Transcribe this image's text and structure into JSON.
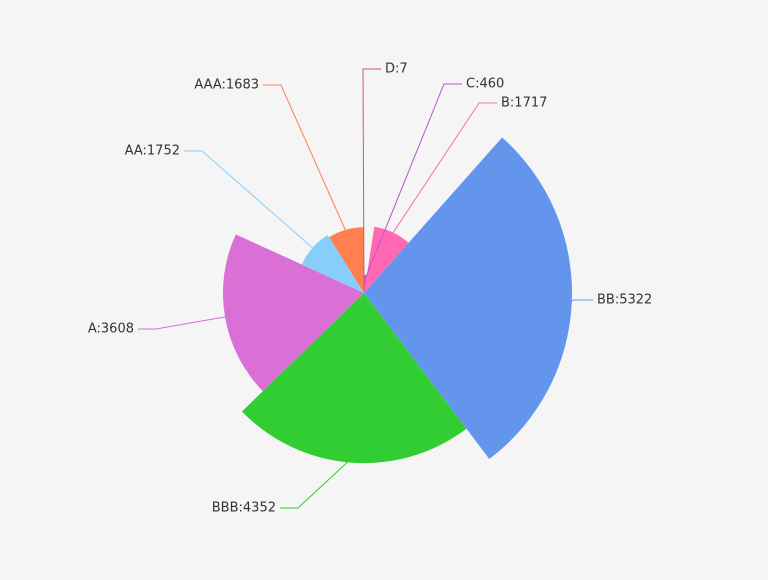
{
  "chart_data": {
    "type": "rose",
    "values": [
      7,
      460,
      1717,
      5322,
      4352,
      3608,
      1752,
      1683
    ],
    "value_labels": [
      "D:7",
      "C:460",
      "B:1717",
      "BB:5322",
      "BBB:4352",
      "A:3608",
      "AA:1752",
      "AAA:1683"
    ],
    "colors": [
      "#cd5c5c",
      "#ba55d3",
      "#ff69b4",
      "#6495ed",
      "#32cd32",
      "#da70d6",
      "#87cefa",
      "#ff7f50"
    ]
  }
}
